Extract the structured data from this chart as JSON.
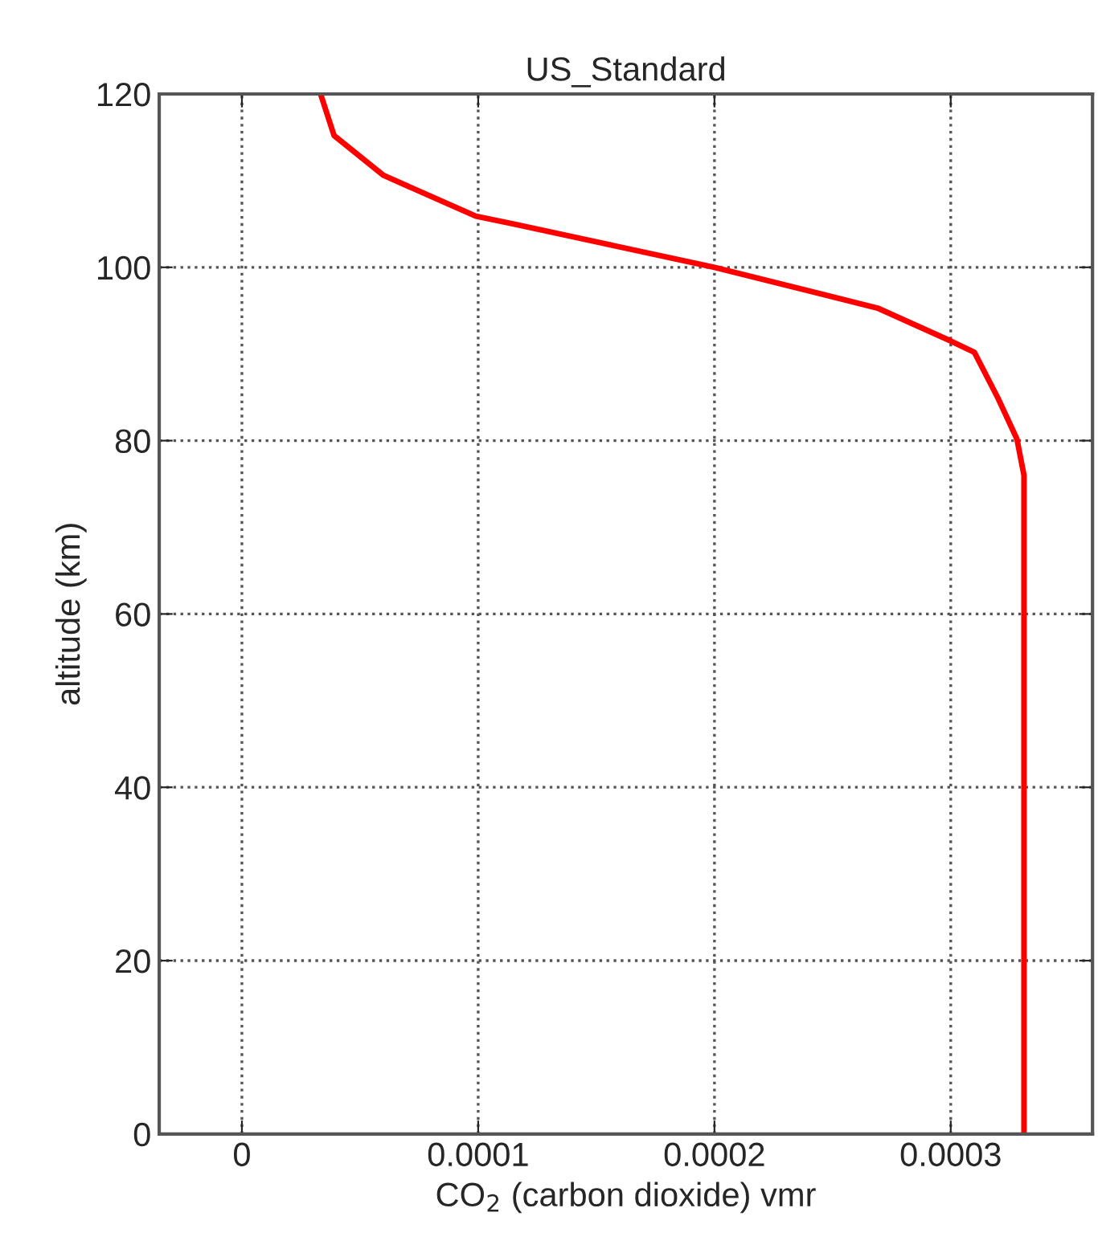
{
  "chart_data": {
    "type": "line",
    "title": "US_Standard",
    "xlabel": "CO$_{2}$ (carbon dioxide) vmr",
    "ylabel": "altitude (km)",
    "xlim": [
      -3.5e-05,
      0.00036
    ],
    "xticks": [
      0,
      0.0001,
      0.0002,
      0.0003
    ],
    "ylim": [
      0,
      120
    ],
    "yticks": [
      0,
      20,
      40,
      60,
      80,
      100,
      120
    ],
    "grid": true,
    "line_style": "solid",
    "marker": "none",
    "series": [
      {
        "color": "#ff0000",
        "x": [
          0.000331,
          0.000331,
          0.000328,
          0.00032,
          0.00031,
          0.0003,
          0.000269,
          0.000244,
          0.0002,
          0.000154,
          0.000115,
          9.9e-05,
          6e-05,
          3.9e-05,
          3.33e-05
        ],
        "values": [
          0,
          76,
          80.2,
          84.9,
          90.2,
          91.5,
          95.3,
          97,
          100,
          102.7,
          105,
          105.9,
          110.6,
          115.2,
          120
        ]
      }
    ]
  }
}
